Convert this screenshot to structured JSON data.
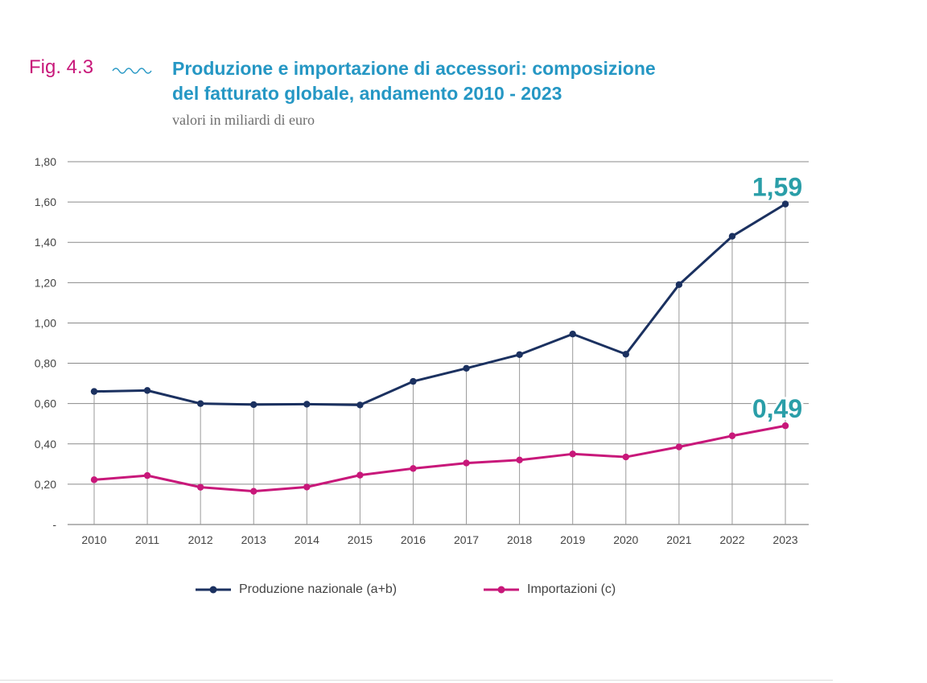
{
  "header": {
    "fig_label": "Fig. 4.3",
    "title_line1": "Produzione e importazione di accessori: composizione",
    "title_line2": "del fatturato globale, andamento 2010 - 2023",
    "subtitle": "valori in miliardi di euro"
  },
  "colors": {
    "fig_label": "#c8187a",
    "title": "#2597c4",
    "series_produzione": "#1b3160",
    "series_importazioni": "#c8187a",
    "highlight_labels": "#2a9ea8",
    "grid": "#888888"
  },
  "chart_data": {
    "type": "line",
    "title": "Produzione e importazione di accessori: composizione del fatturato globale, andamento 2010 - 2023",
    "subtitle": "valori in miliardi di euro",
    "x": [
      "2010",
      "2011",
      "2012",
      "2013",
      "2014",
      "2015",
      "2016",
      "2017",
      "2018",
      "2019",
      "2020",
      "2021",
      "2022",
      "2023"
    ],
    "series": [
      {
        "name": "Produzione nazionale (a+b)",
        "values": [
          0.66,
          0.665,
          0.6,
          0.595,
          0.597,
          0.593,
          0.71,
          0.775,
          0.843,
          0.945,
          0.845,
          1.19,
          1.43,
          1.59
        ],
        "color": "#1b3160",
        "end_label": "1,59"
      },
      {
        "name": "Importazioni (c)",
        "values": [
          0.222,
          0.243,
          0.185,
          0.165,
          0.186,
          0.245,
          0.278,
          0.305,
          0.32,
          0.35,
          0.335,
          0.385,
          0.44,
          0.49
        ],
        "color": "#c8187a",
        "end_label": "0,49"
      }
    ],
    "yticks": [
      "-",
      "0,20",
      "0,40",
      "0,60",
      "0,80",
      "1,00",
      "1,20",
      "1,40",
      "1,60",
      "1,80"
    ],
    "ylim": [
      0,
      1.8
    ],
    "grid": true,
    "legend_position": "bottom"
  },
  "legend": [
    {
      "label": "Produzione nazionale (a+b)"
    },
    {
      "label": "Importazioni (c)"
    }
  ]
}
